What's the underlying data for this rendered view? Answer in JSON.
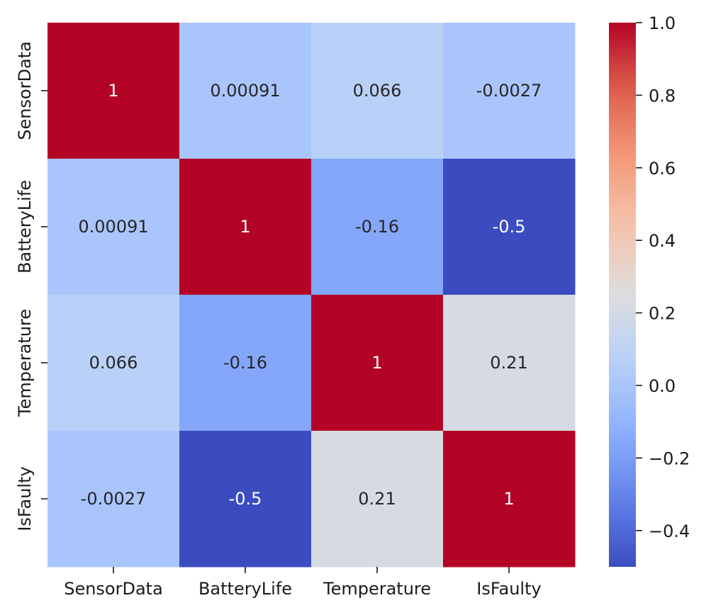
{
  "chart_data": {
    "type": "heatmap",
    "title": "",
    "xlabel": "",
    "ylabel": "",
    "x_categories": [
      "SensorData",
      "BatteryLife",
      "Temperature",
      "IsFaulty"
    ],
    "y_categories": [
      "SensorData",
      "BatteryLife",
      "Temperature",
      "IsFaulty"
    ],
    "values": [
      [
        1,
        0.00091,
        0.066,
        -0.0027
      ],
      [
        0.00091,
        1,
        -0.16,
        -0.5
      ],
      [
        0.066,
        -0.16,
        1,
        0.21
      ],
      [
        -0.0027,
        -0.5,
        0.21,
        1
      ]
    ],
    "annotations": [
      [
        "1",
        "0.00091",
        "0.066",
        "-0.0027"
      ],
      [
        "0.00091",
        "1",
        "-0.16",
        "-0.5"
      ],
      [
        "0.066",
        "-0.16",
        "1",
        "0.21"
      ],
      [
        "-0.0027",
        "-0.5",
        "0.21",
        "1"
      ]
    ],
    "colormap": "coolwarm",
    "vmin": -0.5,
    "vmax": 1.0,
    "colorbar": {
      "ticks": [
        1.0,
        0.8,
        0.6,
        0.4,
        0.2,
        0.0,
        -0.2,
        -0.4
      ],
      "tick_labels": [
        "1.0",
        "0.8",
        "0.6",
        "0.4",
        "0.2",
        "0.0",
        "−0.2",
        "−0.4"
      ]
    }
  }
}
